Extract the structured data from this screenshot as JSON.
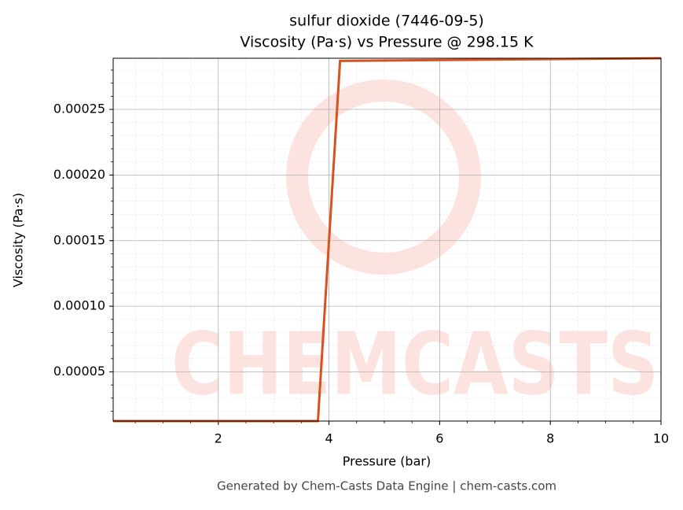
{
  "chart_data": {
    "type": "line",
    "title": "sulfur dioxide (7446-09-5)",
    "subtitle": "Viscosity (Pa·s) vs Pressure @ 298.15 K",
    "xlabel": "Pressure (bar)",
    "ylabel": "Viscosity (Pa·s)",
    "footer": "Generated by Chem-Casts Data Engine | chem-casts.com",
    "watermark": "CHEMCASTS",
    "x": [
      0.1,
      3.8,
      4.2,
      10
    ],
    "series": [
      {
        "name": "Viscosity",
        "color": "#d6521f",
        "values": [
          1.25e-05,
          1.25e-05,
          0.000287,
          0.000289
        ]
      }
    ],
    "xlim": [
      0.1,
      10
    ],
    "ylim": [
      1.25e-05,
      0.000289
    ],
    "xticks": [
      2,
      4,
      6,
      8,
      10
    ],
    "yticks": [
      {
        "value": 5e-05,
        "label": "0.00005"
      },
      {
        "value": 0.0001,
        "label": "0.00010"
      },
      {
        "value": 0.00015,
        "label": "0.00015"
      },
      {
        "value": 0.0002,
        "label": "0.00020"
      },
      {
        "value": 0.00025,
        "label": "0.00025"
      }
    ],
    "grid": true
  }
}
